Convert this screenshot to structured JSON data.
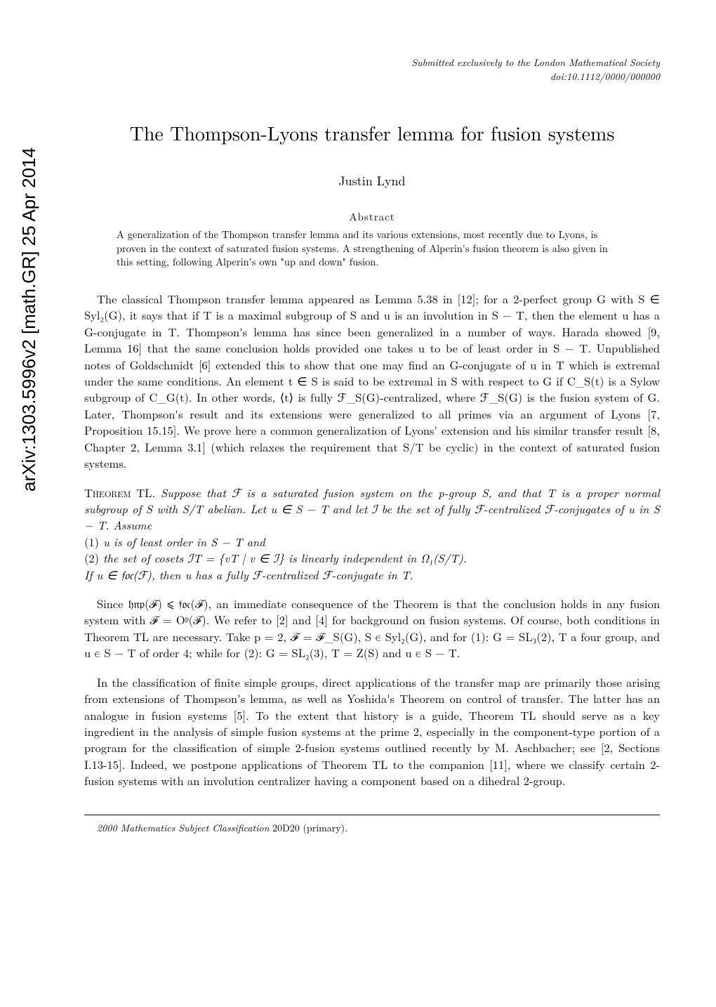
{
  "arxiv": {
    "id": "arXiv:1303.5996v2  [math.GR]  25 Apr 2014"
  },
  "header": {
    "journal_line1": "Submitted exclusively to the London Mathematical Society",
    "journal_line2": "doi:10.1112/0000/000000"
  },
  "title": "The Thompson-Lyons transfer lemma for fusion systems",
  "author": "Justin Lynd",
  "abstract": {
    "heading": "Abstract",
    "text": "A generalization of the Thompson transfer lemma and its various extensions, most recently due to Lyons, is proven in the context of saturated fusion systems. A strengthening of Alperin's fusion theorem is also given in this setting, following Alperin's own \"up and down\" fusion."
  },
  "paragraphs": {
    "p1": "The classical Thompson transfer lemma appeared as Lemma 5.38 in [12]; for a 2-perfect group G with S ∈ Syl₂(G), it says that if T is a maximal subgroup of S and u is an involution in S − T, then the element u has a G-conjugate in T. Thompson's lemma has since been generalized in a number of ways. Harada showed [9, Lemma 16] that the same conclusion holds provided one takes u to be of least order in S − T. Unpublished notes of Goldschmidt [6] extended this to show that one may find an G-conjugate of u in T which is extremal under the same conditions. An element t ∈ S is said to be extremal in S with respect to G if C_S(t) is a Sylow subgroup of C_G(t). In other words, ⟨t⟩ is fully ℱ_S(G)-centralized, where ℱ_S(G) is the fusion system of G. Later, Thompson's result and its extensions were generalized to all primes via an argument of Lyons [7, Proposition 15.15]. We prove here a common generalization of Lyons' extension and his similar transfer result [8, Chapter 2, Lemma 3.1] (which relaxes the requirement that S/T be cyclic) in the context of saturated fusion systems."
  },
  "theorem": {
    "label": "Theorem TL.",
    "statement": "Suppose that ℱ is a saturated fusion system on the p-group S, and that T is a proper normal subgroup of S with S/T abelian. Let u ∈ S − T and let ℐ be the set of fully ℱ-centralized ℱ-conjugates of u in S − T. Assume",
    "item1_num": "(1)",
    "item1": "u is of least order in S − T and",
    "item2_num": "(2)",
    "item2": "the set of cosets ℐT = {vT | v ∈ ℐ} is linearly independent in Ω₁(S/T).",
    "conclusion": "If u ∈ 𝔣𝔬𝔠(ℱ), then u has a fully ℱ-centralized ℱ-conjugate in T."
  },
  "paragraphs2": {
    "p2": "Since 𝔥𝔫𝔭(ℱ) ⩽ 𝔣𝔬𝔠(ℱ), an immediate consequence of the Theorem is that the conclusion holds in any fusion system with ℱ = Oᵖ(ℱ). We refer to [2] and [4] for background on fusion systems. Of course, both conditions in Theorem TL are necessary. Take p = 2, ℱ = ℱ_S(G), S ∈ Syl₂(G), and for (1): G = SL₃(2), T a four group, and u ∈ S − T of order 4; while for (2): G = SL₂(3), T = Z(S) and u ∈ S − T.",
    "p3": "In the classification of finite simple groups, direct applications of the transfer map are primarily those arising from extensions of Thompson's lemma, as well as Yoshida's Theorem on control of transfer. The latter has an analogue in fusion systems [5]. To the extent that history is a guide, Theorem TL should serve as a key ingredient in the analysis of simple fusion systems at the prime 2, especially in the component-type portion of a program for the classification of simple 2-fusion systems outlined recently by M. Aschbacher; see [2, Sections I.13-15]. Indeed, we postpone applications of Theorem TL to the companion [11], where we classify certain 2-fusion systems with an involution centralizer having a component based on a dihedral 2-group."
  },
  "footer": {
    "msc_label": "2000 Mathematics Subject Classification",
    "msc_value": "20D20 (primary)."
  }
}
